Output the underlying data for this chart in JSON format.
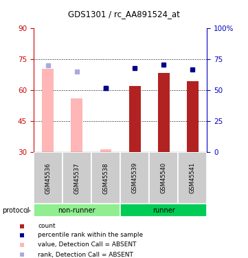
{
  "title": "GDS1301 / rc_AA891524_at",
  "samples": [
    "GSM45536",
    "GSM45537",
    "GSM45538",
    "GSM45539",
    "GSM45540",
    "GSM45541"
  ],
  "bar_values": [
    70.5,
    56.0,
    31.5,
    62.0,
    68.5,
    64.5
  ],
  "bar_absent": [
    true,
    true,
    true,
    false,
    false,
    false
  ],
  "rank_values": [
    70.0,
    65.0,
    52.0,
    68.0,
    70.5,
    67.0
  ],
  "rank_absent": [
    true,
    true,
    false,
    false,
    false,
    false
  ],
  "rank_present_gsm38": 52.0,
  "ylim_left": [
    30,
    90
  ],
  "ylim_right": [
    0,
    100
  ],
  "yticks_left": [
    30,
    45,
    60,
    75,
    90
  ],
  "yticks_right": [
    0,
    25,
    50,
    75,
    100
  ],
  "ytick_right_labels": [
    "0",
    "25",
    "50",
    "75",
    "100%"
  ],
  "color_bar_present": "#B22222",
  "color_bar_absent": "#FFB6B6",
  "color_rank_present": "#00008B",
  "color_rank_absent": "#AAAADD",
  "color_group_nonrunner": "#90EE90",
  "color_group_runner": "#00CC55",
  "color_label_left": "#CC0000",
  "color_label_right": "#0000BB",
  "legend_items": [
    {
      "label": "count",
      "color": "#B22222"
    },
    {
      "label": "percentile rank within the sample",
      "color": "#00008B"
    },
    {
      "label": "value, Detection Call = ABSENT",
      "color": "#FFB6B6"
    },
    {
      "label": "rank, Detection Call = ABSENT",
      "color": "#AAAADD"
    }
  ],
  "grid_yticks": [
    45,
    60,
    75
  ],
  "bar_width": 0.4
}
